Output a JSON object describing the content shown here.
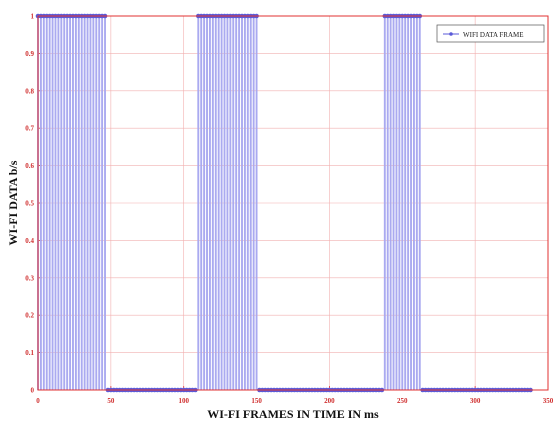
{
  "chart_data": {
    "type": "line",
    "title": "",
    "xlabel": "WI-FI FRAMES IN TIME IN ms",
    "ylabel": "WI-FI DATA b/s",
    "xlim": [
      0,
      350
    ],
    "ylim": [
      0,
      1
    ],
    "xticks": [
      "0",
      "50",
      "100",
      "150",
      "200",
      "250",
      "300",
      "350"
    ],
    "yticks": [
      "0",
      "0.1",
      "0.2",
      "0.3",
      "0.4",
      "0.5",
      "0.6",
      "0.7",
      "0.8",
      "0.9",
      "1"
    ],
    "grid": true,
    "legend_position": "top-right",
    "series": [
      {
        "name": "WIFI DATA FRAME",
        "color": "#5a5ad8",
        "fill_color": "#aaaaf0",
        "marker": "dot",
        "x_step": 2,
        "segments": [
          {
            "x_start": 0,
            "x_end": 46,
            "value": 1
          },
          {
            "x_start": 48,
            "x_end": 108,
            "value": 0
          },
          {
            "x_start": 110,
            "x_end": 150,
            "value": 1
          },
          {
            "x_start": 152,
            "x_end": 236,
            "value": 0
          },
          {
            "x_start": 238,
            "x_end": 262,
            "value": 1
          },
          {
            "x_start": 264,
            "x_end": 338,
            "value": 0
          }
        ]
      }
    ]
  },
  "colors": {
    "axis": "#e03030",
    "grid": "#f2b0b0",
    "background": "#ffffff"
  }
}
